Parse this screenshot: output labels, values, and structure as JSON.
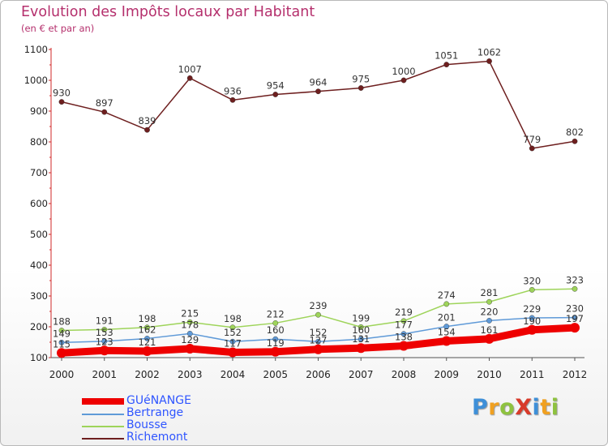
{
  "header": {
    "title": "Evolution des Impôts locaux par Habitant",
    "subtitle": "(en € et par an)"
  },
  "logo": {
    "text": "ProXiti",
    "letters": [
      "P",
      "r",
      "o",
      "X",
      "i",
      "t",
      "i"
    ],
    "colors": [
      "#3e8fd8",
      "#f0a020",
      "#8ec23f",
      "#d83a2a",
      "#3e8fd8",
      "#f0a020",
      "#8ec23f"
    ]
  },
  "chart_data": {
    "type": "line",
    "title": "Evolution des Impôts locaux par Habitant",
    "subtitle": "(en € et par an)",
    "xlabel": "",
    "ylabel": "",
    "ylim": [
      100,
      1100
    ],
    "grid": false,
    "legend_position": "bottom-left",
    "y_ticks": [
      "100",
      "200",
      "300",
      "400",
      "500",
      "600",
      "700",
      "800",
      "900",
      "1000",
      "1100"
    ],
    "categories": [
      "2000",
      "2001",
      "2002",
      "2003",
      "2004",
      "2005",
      "2006",
      "2007",
      "2008",
      "2009",
      "2010",
      "2011",
      "2012"
    ],
    "series": [
      {
        "name": "GUéNANGE",
        "color": "#ee0000",
        "values": [
          115,
          123,
          121,
          129,
          117,
          119,
          127,
          131,
          138,
          154,
          161,
          190,
          197
        ],
        "labels": [
          "115",
          "123",
          "121",
          "129",
          "117",
          "119",
          "127",
          "131",
          "138",
          "154",
          "161",
          "190",
          "197"
        ]
      },
      {
        "name": "Bertrange",
        "color": "#5f9ad8",
        "values": [
          149,
          153,
          162,
          178,
          152,
          160,
          152,
          160,
          177,
          201,
          220,
          229,
          230
        ],
        "labels": [
          "149",
          "153",
          "162",
          "178",
          "152",
          "160",
          "152",
          "160",
          "177",
          "201",
          "220",
          "229",
          "230"
        ]
      },
      {
        "name": "Bousse",
        "color": "#9ed45a",
        "values": [
          188,
          191,
          198,
          215,
          198,
          212,
          239,
          199,
          219,
          274,
          281,
          320,
          323
        ],
        "labels": [
          "188",
          "191",
          "198",
          "215",
          "198",
          "212",
          "239",
          "199",
          "219",
          "274",
          "281",
          "320",
          "323"
        ]
      },
      {
        "name": "Richemont",
        "color": "#6e1f1f",
        "values": [
          930,
          897,
          839,
          1007,
          936,
          954,
          964,
          975,
          1000,
          1051,
          1062,
          779,
          802
        ],
        "labels": [
          "930",
          "897",
          "839",
          "1007",
          "936",
          "954",
          "964",
          "975",
          "1000",
          "1051",
          "1062",
          "779",
          "802"
        ]
      }
    ]
  }
}
